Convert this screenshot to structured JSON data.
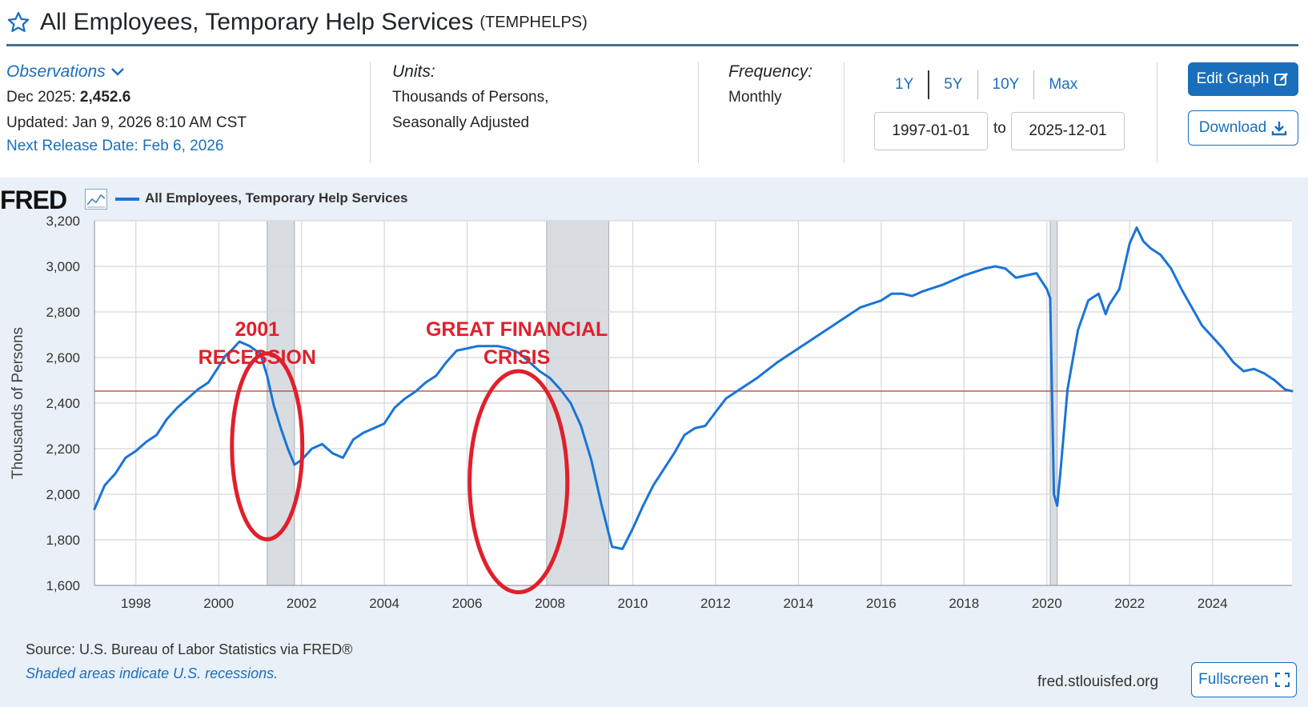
{
  "header": {
    "title": "All Employees, Temporary Help Services",
    "series_id": "(TEMPHELPS)"
  },
  "observations": {
    "link_label": "Observations",
    "latest_label": "Dec 2025:",
    "latest_value": "2,452.6",
    "updated": "Updated: Jan 9, 2026 8:10 AM CST",
    "next_release": "Next Release Date: Feb 6, 2026"
  },
  "units": {
    "label": "Units:",
    "line1": "Thousands of Persons,",
    "line2": "Seasonally Adjusted"
  },
  "frequency": {
    "label": "Frequency:",
    "value": "Monthly"
  },
  "range": {
    "buttons": [
      "1Y",
      "5Y",
      "10Y",
      "Max"
    ],
    "start": "1997-01-01",
    "to_label": "to",
    "end": "2025-12-01"
  },
  "actions": {
    "edit_label": "Edit Graph",
    "download_label": "Download",
    "fullscreen_label": "Fullscreen"
  },
  "footer": {
    "source": "Source: U.S. Bureau of Labor Statistics via FRED®",
    "shaded_note": "Shaded areas indicate U.S. recessions.",
    "site": "fred.stlouisfed.org"
  },
  "brand": {
    "logo": "FRED"
  },
  "colors": {
    "series": "#1a74d6",
    "annotation": "#e0202c",
    "reference_line": "#c0392b",
    "recession": "#d9dde2"
  },
  "chart_data": {
    "type": "line",
    "title": "All Employees, Temporary Help Services",
    "ylabel": "Thousands of Persons",
    "xlabel": "",
    "xlim": [
      1997.0,
      2025.92
    ],
    "ylim": [
      1600,
      3200
    ],
    "yticks": [
      1600,
      1800,
      2000,
      2200,
      2400,
      2600,
      2800,
      3000,
      3200
    ],
    "ytick_labels": [
      "1,600",
      "1,800",
      "2,000",
      "2,200",
      "2,400",
      "2,600",
      "2,800",
      "3,000",
      "3,200"
    ],
    "xticks": [
      1998,
      2000,
      2002,
      2004,
      2006,
      2008,
      2010,
      2012,
      2014,
      2016,
      2018,
      2020,
      2022,
      2024
    ],
    "xtick_labels": [
      "1998",
      "2000",
      "2002",
      "2004",
      "2006",
      "2008",
      "2010",
      "2012",
      "2014",
      "2016",
      "2018",
      "2020",
      "2022",
      "2024"
    ],
    "reference_line": 2452.6,
    "recessions": [
      [
        2001.17,
        2001.83
      ],
      [
        2007.92,
        2009.42
      ],
      [
        2020.08,
        2020.25
      ]
    ],
    "annotations": [
      {
        "lines": [
          "2001",
          "RECESSION"
        ],
        "x": 2000.93,
        "y": 2695,
        "ellipse": {
          "cx": 2001.17,
          "cy": 2210,
          "rx_years": 0.85,
          "ry_units": 408
        }
      },
      {
        "lines": [
          "GREAT FINANCIAL",
          "CRISIS"
        ],
        "x": 2007.2,
        "y": 2695,
        "ellipse": {
          "cx": 2007.24,
          "cy": 2055,
          "rx_years": 1.18,
          "ry_units": 485
        }
      }
    ],
    "series": [
      {
        "name": "All Employees, Temporary Help Services",
        "x": [
          1997.0,
          1997.25,
          1997.5,
          1997.75,
          1998.0,
          1998.25,
          1998.5,
          1998.75,
          1999.0,
          1999.25,
          1999.5,
          1999.75,
          2000.0,
          2000.17,
          2000.3,
          2000.5,
          2000.75,
          2000.9,
          2001.0,
          2001.17,
          2001.33,
          2001.5,
          2001.67,
          2001.83,
          2002.0,
          2002.25,
          2002.5,
          2002.75,
          2003.0,
          2003.25,
          2003.5,
          2003.75,
          2004.0,
          2004.25,
          2004.5,
          2004.75,
          2005.0,
          2005.25,
          2005.5,
          2005.75,
          2006.0,
          2006.25,
          2006.5,
          2006.75,
          2007.0,
          2007.25,
          2007.5,
          2007.75,
          2008.0,
          2008.25,
          2008.5,
          2008.75,
          2009.0,
          2009.25,
          2009.5,
          2009.75,
          2010.0,
          2010.25,
          2010.5,
          2010.75,
          2011.0,
          2011.25,
          2011.5,
          2011.75,
          2012.0,
          2012.25,
          2012.5,
          2012.75,
          2013.0,
          2013.5,
          2014.0,
          2014.5,
          2015.0,
          2015.5,
          2016.0,
          2016.25,
          2016.5,
          2016.75,
          2017.0,
          2017.5,
          2018.0,
          2018.5,
          2018.75,
          2019.0,
          2019.25,
          2019.5,
          2019.75,
          2020.0,
          2020.08,
          2020.17,
          2020.25,
          2020.33,
          2020.5,
          2020.75,
          2021.0,
          2021.25,
          2021.42,
          2021.5,
          2021.75,
          2022.0,
          2022.17,
          2022.33,
          2022.5,
          2022.75,
          2023.0,
          2023.25,
          2023.5,
          2023.75,
          2024.0,
          2024.25,
          2024.5,
          2024.75,
          2025.0,
          2025.25,
          2025.5,
          2025.75,
          2025.92
        ],
        "values": [
          1935,
          2040,
          2090,
          2160,
          2190,
          2230,
          2260,
          2330,
          2380,
          2420,
          2460,
          2490,
          2560,
          2610,
          2630,
          2670,
          2650,
          2630,
          2620,
          2520,
          2390,
          2290,
          2200,
          2130,
          2150,
          2200,
          2220,
          2180,
          2160,
          2240,
          2270,
          2290,
          2310,
          2380,
          2420,
          2450,
          2490,
          2520,
          2580,
          2630,
          2640,
          2650,
          2650,
          2650,
          2640,
          2620,
          2580,
          2540,
          2510,
          2460,
          2400,
          2300,
          2150,
          1950,
          1770,
          1760,
          1850,
          1950,
          2040,
          2110,
          2180,
          2260,
          2290,
          2300,
          2360,
          2420,
          2450,
          2480,
          2510,
          2580,
          2640,
          2700,
          2760,
          2820,
          2850,
          2880,
          2880,
          2870,
          2890,
          2920,
          2960,
          2990,
          3000,
          2990,
          2950,
          2960,
          2970,
          2900,
          2860,
          2000,
          1950,
          2100,
          2460,
          2720,
          2850,
          2880,
          2790,
          2830,
          2900,
          3100,
          3170,
          3110,
          3080,
          3050,
          2990,
          2900,
          2820,
          2740,
          2690,
          2640,
          2580,
          2540,
          2550,
          2530,
          2500,
          2460,
          2452.6
        ]
      }
    ]
  }
}
